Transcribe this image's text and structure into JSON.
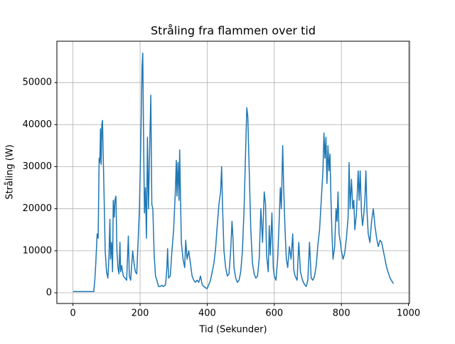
{
  "chart_data": {
    "type": "line",
    "title": "Stråling fra flammen over tid",
    "xlabel": "Tid (Sekunder)",
    "ylabel": "Stråling (W)",
    "xlim": [
      -48,
      1003
    ],
    "ylim": [
      -2535,
      59835
    ],
    "xticks": [
      0,
      200,
      400,
      600,
      800,
      1000
    ],
    "yticks": [
      0,
      10000,
      20000,
      30000,
      40000,
      50000
    ],
    "grid": true,
    "x": [
      0,
      62,
      65,
      68,
      72,
      75,
      78,
      80,
      82,
      84,
      86,
      88,
      90,
      93,
      96,
      100,
      104,
      107,
      110,
      112,
      115,
      118,
      120,
      123,
      125,
      128,
      131,
      134,
      137,
      140,
      142,
      145,
      150,
      155,
      160,
      165,
      168,
      172,
      178,
      182,
      186,
      190,
      195,
      198,
      202,
      206,
      208,
      210,
      213,
      216,
      219,
      222,
      225,
      228,
      232,
      235,
      238,
      242,
      246,
      250,
      255,
      260,
      265,
      270,
      276,
      280,
      282,
      285,
      290,
      295,
      300,
      305,
      308,
      310,
      313,
      316,
      318,
      320,
      323,
      328,
      333,
      336,
      340,
      345,
      350,
      355,
      360,
      365,
      370,
      375,
      380,
      385,
      390,
      395,
      400,
      405,
      410,
      415,
      420,
      425,
      430,
      435,
      440,
      443,
      446,
      450,
      455,
      460,
      465,
      470,
      474,
      477,
      480,
      485,
      490,
      495,
      500,
      505,
      510,
      515,
      518,
      521,
      525,
      530,
      535,
      540,
      545,
      550,
      555,
      560,
      565,
      570,
      574,
      577,
      582,
      585,
      588,
      593,
      597,
      600,
      605,
      610,
      614,
      618,
      621,
      625,
      628,
      632,
      636,
      640,
      645,
      650,
      655,
      658,
      662,
      668,
      673,
      678,
      684,
      690,
      695,
      700,
      705,
      710,
      715,
      720,
      725,
      730,
      735,
      740,
      745,
      748,
      751,
      754,
      757,
      760,
      763,
      766,
      769,
      772,
      775,
      780,
      784,
      787,
      790,
      793,
      797,
      800,
      805,
      810,
      815,
      820,
      823,
      826,
      830,
      834,
      837,
      840,
      845,
      850,
      853,
      856,
      860,
      863,
      866,
      870,
      873,
      876,
      880,
      885,
      890,
      895,
      900,
      905,
      910,
      915,
      920,
      925,
      935,
      945,
      955
    ],
    "series": [
      {
        "name": "Stråling",
        "color": "#1f77b4",
        "values": [
          300,
          300,
          3000,
          7000,
          14000,
          13000,
          32000,
          31000,
          39000,
          30500,
          40000,
          41000,
          33000,
          22000,
          10000,
          5000,
          3500,
          8000,
          17500,
          8000,
          12000,
          5000,
          22000,
          18000,
          22000,
          23000,
          10000,
          6000,
          4500,
          12000,
          5000,
          6500,
          4000,
          3500,
          3000,
          13500,
          4000,
          3000,
          10000,
          7000,
          5000,
          4500,
          14000,
          20000,
          35000,
          54000,
          57000,
          40000,
          19000,
          25000,
          13000,
          37000,
          20000,
          32000,
          47000,
          21000,
          20000,
          9000,
          4000,
          3000,
          1500,
          1500,
          1800,
          1500,
          2000,
          6000,
          10500,
          3500,
          4000,
          10000,
          15000,
          24000,
          31500,
          23000,
          31000,
          22000,
          34000,
          25000,
          12000,
          8000,
          6000,
          12500,
          8000,
          10000,
          7000,
          4000,
          3000,
          2500,
          3000,
          2500,
          4000,
          2000,
          1500,
          1200,
          1000,
          2000,
          3000,
          5000,
          7000,
          10500,
          16000,
          21000,
          24000,
          30000,
          20000,
          10000,
          6000,
          4000,
          4500,
          10000,
          17000,
          13000,
          6000,
          3500,
          2500,
          3000,
          5000,
          10000,
          20000,
          35000,
          44000,
          42000,
          30000,
          15000,
          7000,
          4500,
          3500,
          4000,
          8000,
          20000,
          12000,
          24000,
          21000,
          9000,
          5000,
          16000,
          9000,
          19000,
          6000,
          4000,
          3000,
          8000,
          16000,
          25000,
          20000,
          35000,
          25000,
          15000,
          8000,
          6000,
          11000,
          8000,
          14000,
          5500,
          4000,
          3000,
          12000,
          5000,
          3000,
          2000,
          1500,
          3000,
          12000,
          3500,
          3000,
          4000,
          6500,
          11500,
          15000,
          22000,
          29000,
          38000,
          32000,
          37000,
          26000,
          35000,
          29000,
          33000,
          22000,
          14000,
          8000,
          11000,
          20000,
          17000,
          24000,
          14000,
          12000,
          10000,
          8000,
          9500,
          13000,
          18000,
          31000,
          20000,
          27000,
          20000,
          22000,
          15000,
          19000,
          29000,
          22000,
          29000,
          19000,
          16000,
          18000,
          22000,
          29000,
          20000,
          14000,
          12000,
          17000,
          20000,
          16000,
          13000,
          11000,
          12500,
          12000,
          10000,
          6000,
          3500,
          2200
        ]
      }
    ]
  }
}
